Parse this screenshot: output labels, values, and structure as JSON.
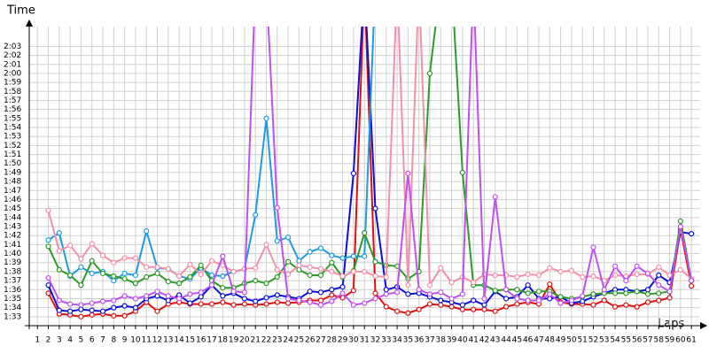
{
  "chart_data": {
    "type": "line",
    "y_label": "Time",
    "x_label": "Laps",
    "x": [
      1,
      2,
      3,
      4,
      5,
      6,
      7,
      8,
      9,
      10,
      11,
      12,
      13,
      14,
      15,
      16,
      17,
      18,
      19,
      20,
      21,
      22,
      23,
      24,
      25,
      26,
      27,
      28,
      29,
      30,
      31,
      32,
      33,
      34,
      35,
      36,
      37,
      38,
      39,
      40,
      41,
      42,
      43,
      44,
      45,
      46,
      47,
      48,
      49,
      50,
      51,
      52,
      53,
      54,
      55,
      56,
      57,
      58,
      59,
      60,
      61
    ],
    "xlim": [
      0.25,
      61.8
    ],
    "ylim": [
      92,
      125.2
    ],
    "yticks": [
      {
        "value": 93,
        "label": "1:33"
      },
      {
        "value": 94,
        "label": "1:34"
      },
      {
        "value": 95,
        "label": "1:35"
      },
      {
        "value": 96,
        "label": "1:36"
      },
      {
        "value": 97,
        "label": "1:37"
      },
      {
        "value": 98,
        "label": "1:38"
      },
      {
        "value": 99,
        "label": "1:39"
      },
      {
        "value": 100,
        "label": "1:40"
      },
      {
        "value": 101,
        "label": "1:41"
      },
      {
        "value": 102,
        "label": "1:42"
      },
      {
        "value": 103,
        "label": "1:43"
      },
      {
        "value": 104,
        "label": "1:44"
      },
      {
        "value": 105,
        "label": "1:45"
      },
      {
        "value": 106,
        "label": "1:46"
      },
      {
        "value": 107,
        "label": "1:47"
      },
      {
        "value": 108,
        "label": "1:48"
      },
      {
        "value": 109,
        "label": "1:49"
      },
      {
        "value": 110,
        "label": "1:50"
      },
      {
        "value": 111,
        "label": "1:51"
      },
      {
        "value": 112,
        "label": "1:52"
      },
      {
        "value": 113,
        "label": "1:53"
      },
      {
        "value": 114,
        "label": "1:54"
      },
      {
        "value": 115,
        "label": "1:55"
      },
      {
        "value": 116,
        "label": "1:56"
      },
      {
        "value": 117,
        "label": "1:57"
      },
      {
        "value": 118,
        "label": "1:58"
      },
      {
        "value": 119,
        "label": "1:59"
      },
      {
        "value": 120,
        "label": "2:00"
      },
      {
        "value": 121,
        "label": "2:01"
      },
      {
        "value": 122,
        "label": "2:02"
      },
      {
        "value": 123,
        "label": "2:03"
      }
    ],
    "grid": true,
    "series": [
      {
        "color": "#e01010",
        "values": [
          null,
          95.6,
          93.3,
          93.2,
          93.0,
          93.2,
          93.3,
          93.1,
          93.1,
          93.6,
          94.6,
          93.6,
          94.4,
          94.6,
          94.4,
          94.4,
          94.4,
          94.6,
          94.3,
          94.4,
          94.3,
          94.4,
          94.6,
          94.5,
          94.6,
          94.8,
          94.8,
          95.4,
          95.1,
          95.9,
          130,
          95.6,
          94.1,
          93.6,
          93.4,
          93.8,
          94.4,
          94.3,
          94.1,
          93.8,
          93.8,
          93.8,
          93.6,
          94.1,
          94.4,
          94.6,
          94.4,
          96.6,
          94.6,
          94.4,
          94.4,
          94.3,
          94.8,
          94.1,
          94.3,
          94.1,
          94.6,
          94.8,
          95.1,
          102.7,
          96.4
        ]
      },
      {
        "color": "#0a10d8",
        "values": [
          null,
          96.5,
          93.7,
          93.6,
          93.8,
          93.7,
          93.6,
          94.0,
          94.2,
          94.0,
          95.0,
          95.3,
          94.8,
          95.4,
          94.5,
          95.2,
          96.5,
          95.3,
          95.6,
          95.0,
          94.7,
          95.1,
          95.4,
          95.2,
          95.0,
          95.8,
          95.7,
          96.0,
          96.3,
          108.9,
          130,
          105.0,
          96.0,
          96.3,
          95.5,
          95.6,
          95.2,
          94.8,
          94.6,
          94.3,
          94.8,
          94.3,
          95.8,
          95.0,
          95.2,
          96.5,
          95.0,
          95.0,
          95.2,
          94.5,
          94.7,
          95.2,
          95.6,
          96.0,
          96.0,
          95.8,
          96.0,
          97.6,
          96.8,
          102.4,
          102.2
        ]
      },
      {
        "color": "#1e9be6",
        "values": [
          null,
          101.5,
          102.3,
          97.5,
          98.5,
          97.8,
          98.0,
          97.0,
          97.8,
          97.6,
          102.5,
          98.4,
          98.3,
          97.5,
          97.2,
          98.4,
          97.6,
          97.5,
          98.0,
          98.3,
          104.3,
          115.0,
          101.4,
          101.8,
          99.2,
          100.2,
          100.6,
          99.8,
          99.5,
          99.7,
          99.7,
          130,
          null,
          null,
          null,
          null,
          null,
          null,
          null,
          null,
          null,
          null,
          null,
          null,
          null,
          null,
          null,
          null,
          null,
          null,
          null,
          null,
          null,
          null,
          null,
          null,
          null,
          null,
          null,
          null,
          null
        ]
      },
      {
        "color": "#2e9a2a",
        "values": [
          null,
          100.8,
          98.2,
          97.6,
          96.5,
          99.2,
          97.8,
          97.5,
          97.2,
          96.7,
          97.4,
          97.8,
          96.9,
          96.7,
          97.4,
          98.7,
          97.0,
          96.2,
          96.2,
          96.7,
          97.0,
          96.7,
          97.4,
          99.1,
          98.2,
          97.6,
          97.6,
          99.0,
          97.4,
          98.1,
          102.3,
          99.1,
          98.7,
          98.6,
          97.2,
          98.0,
          120.0,
          130,
          130,
          109.0,
          96.5,
          96.5,
          95.9,
          96.0,
          96.0,
          95.6,
          95.8,
          95.8,
          95.2,
          95.0,
          95.2,
          95.5,
          95.6,
          95.6,
          95.6,
          95.8,
          95.5,
          95.6,
          95.8,
          103.6,
          97.0
        ]
      },
      {
        "color": "#f590a8",
        "values": [
          null,
          104.8,
          100.3,
          100.9,
          99.4,
          101.1,
          99.8,
          99.0,
          99.5,
          99.5,
          98.5,
          98.5,
          98.3,
          97.5,
          98.8,
          97.7,
          99.2,
          98.7,
          98.0,
          98.3,
          98.4,
          101.0,
          98.2,
          97.7,
          98.7,
          98.5,
          98.3,
          98.0,
          97.5,
          98.0,
          98.0,
          97.5,
          97.4,
          130,
          96.5,
          130,
          96.5,
          98.4,
          96.8,
          97.4,
          96.8,
          97.7,
          97.6,
          97.6,
          97.4,
          97.7,
          97.6,
          98.4,
          98.0,
          98.1,
          97.4,
          97.5,
          97.0,
          97.6,
          97.5,
          97.7,
          97.7,
          98.5,
          97.6,
          98.2,
          97.2
        ]
      },
      {
        "color": "#c050f0",
        "values": [
          null,
          97.3,
          94.8,
          94.4,
          94.3,
          94.5,
          94.7,
          94.8,
          95.3,
          95.0,
          95.3,
          95.8,
          95.3,
          95.0,
          95.5,
          95.7,
          96.5,
          99.7,
          95.8,
          95.7,
          130,
          130,
          105.1,
          95.0,
          94.8,
          94.6,
          94.3,
          94.7,
          95.6,
          94.3,
          94.5,
          95.0,
          95.5,
          95.7,
          108.9,
          96.0,
          95.5,
          95.7,
          95.0,
          95.5,
          130,
          95.0,
          106.3,
          96.0,
          95.0,
          94.8,
          94.8,
          95.5,
          94.5,
          94.8,
          95.3,
          100.7,
          96.0,
          98.6,
          97.0,
          98.6,
          97.8,
          96.5,
          95.8,
          103.0,
          97.0
        ]
      }
    ]
  }
}
